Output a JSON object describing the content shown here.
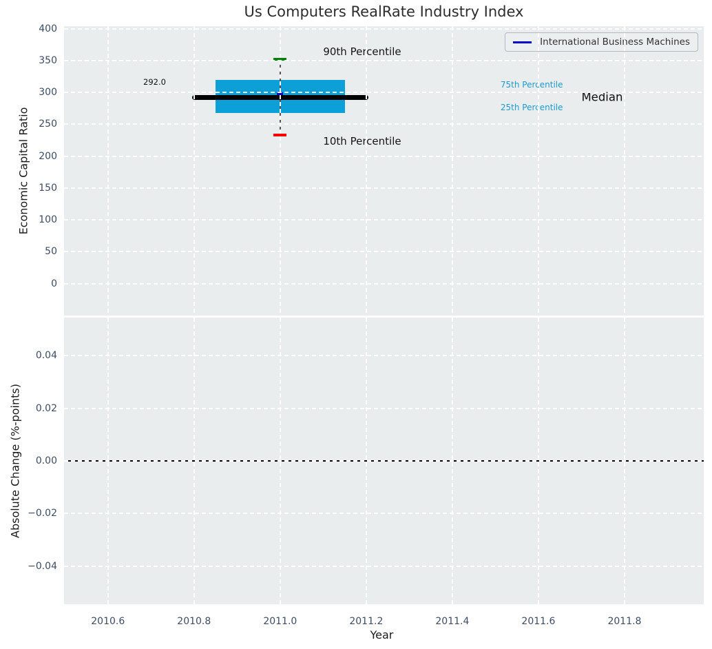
{
  "title": "Us Computers RealRate Industry Index",
  "legend": {
    "label": "International Business Machines",
    "line_color": "#0000cd"
  },
  "colors": {
    "plot_bg": "#e9edee",
    "grid": "#ffffff",
    "box_fill": "#0c9fd8",
    "median_line": "#000000",
    "whisker": "#555555",
    "cap_90": "#008000",
    "cap_10": "#f40000",
    "company_dot": "#0000cd",
    "legend_line": "#0000cd",
    "tick_label": "#3d4c63",
    "annotation_cyan": "#1c9bd0",
    "zero_line": "#000000"
  },
  "chart_data": [
    {
      "type": "boxplot",
      "title": "Us Computers RealRate Industry Index",
      "ylabel": "Economic Capital Ratio",
      "xlabel": "Year",
      "grid": "white dashed on light-gray background",
      "legend_position": "upper right",
      "xlim": [
        2010.498,
        2011.984
      ],
      "ylim": [
        -50,
        404
      ],
      "xticks": [
        2010.6,
        2010.8,
        2011.0,
        2011.2,
        2011.4,
        2011.6,
        2011.8
      ],
      "xtick_labels": [
        "2010.6",
        "2010.8",
        "2011.0",
        "2011.2",
        "2011.4",
        "2011.6",
        "2011.8"
      ],
      "yticks": [
        0,
        50,
        100,
        150,
        200,
        250,
        300,
        350,
        400
      ],
      "ytick_labels": [
        "0",
        "50",
        "100",
        "150",
        "200",
        "250",
        "300",
        "350",
        "400"
      ],
      "box": {
        "x_center": 2011.0,
        "box_half_width": 0.15,
        "median_half_width": 0.205,
        "p10": 233,
        "p25": 268,
        "median": 292,
        "p75": 320,
        "p90": 352,
        "company_value": 298,
        "median_label": "292.0"
      },
      "annotations": {
        "p90": {
          "text": "90th Percentile",
          "x": 2011.1,
          "y": 364
        },
        "p10": {
          "text": "10th Percentile",
          "x": 2011.1,
          "y": 223
        },
        "p75": {
          "text": "75th Percentile",
          "x": 2011.512,
          "y": 312
        },
        "p25": {
          "text": "25th Percentile",
          "x": 2011.512,
          "y": 276
        },
        "median": {
          "text": "Median",
          "x": 2011.7,
          "y": 293
        },
        "value_tag": {
          "text": "292.0",
          "x": 2010.682,
          "y": 316
        }
      }
    },
    {
      "type": "line",
      "ylabel": "Absolute Change (%-points)",
      "xlabel": "Year",
      "xlim": [
        2010.498,
        2011.984
      ],
      "ylim": [
        -0.0545,
        0.0545
      ],
      "yticks": [
        0.04,
        0.02,
        0.0,
        -0.02,
        -0.04
      ],
      "ytick_labels": [
        "0.04",
        "0.02",
        "0.00",
        "−0.02",
        "−0.04"
      ],
      "zero_line_y": 0.0,
      "series": [
        {
          "name": "International Business Machines",
          "x": [],
          "values": []
        }
      ]
    }
  ]
}
